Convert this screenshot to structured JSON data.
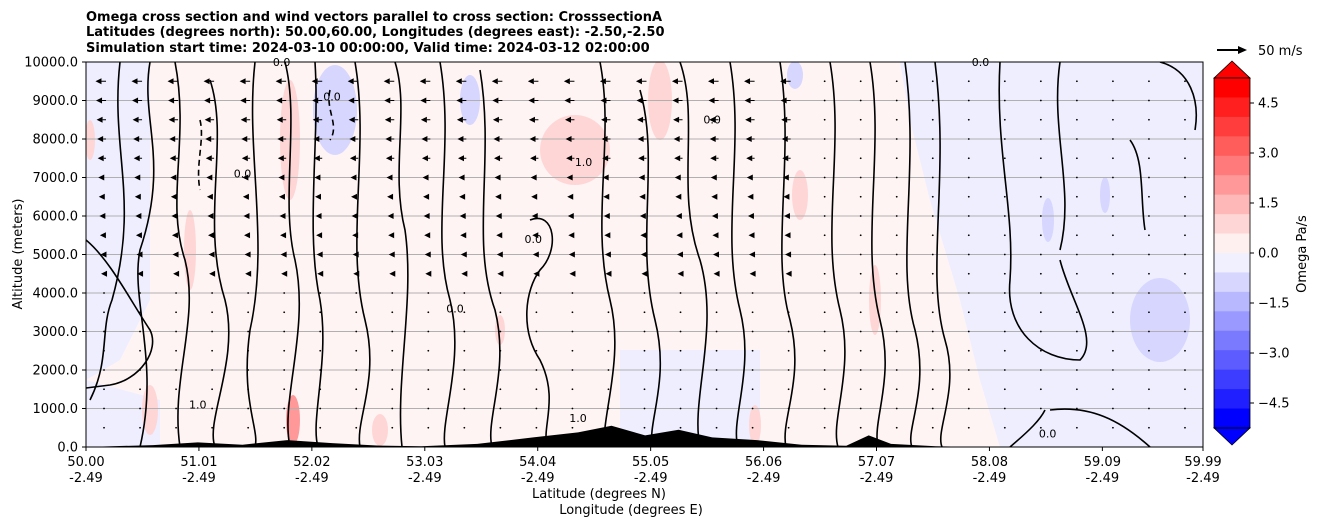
{
  "chart_data": {
    "type": "contour-cross-section",
    "title_lines": [
      "Omega cross section and wind vectors parallel to cross section: CrosssectionA",
      "Latitudes (degrees north): 50.00,60.00, Longitudes (degrees east): -2.50,-2.50",
      "Simulation start time: 2024-03-10 00:00:00, Valid time: 2024-03-12 02:00:00"
    ],
    "ylabel": "Altitude (meters)",
    "xlabel_lat": "Latitude (degrees N)",
    "xlabel_lon": "Longitude (degrees E)",
    "ylim": [
      0,
      10000
    ],
    "yticks": [
      "0.0",
      "1000.0",
      "2000.0",
      "3000.0",
      "4000.0",
      "5000.0",
      "6000.0",
      "7000.0",
      "8000.0",
      "9000.0",
      "10000.0"
    ],
    "xlim": [
      50.0,
      59.99
    ],
    "xticks": [
      {
        "lat": 50.0,
        "label_lat": "50.00",
        "label_lon": "-2.49"
      },
      {
        "lat": 51.01,
        "label_lat": "51.01",
        "label_lon": "-2.49"
      },
      {
        "lat": 52.02,
        "label_lat": "52.02",
        "label_lon": "-2.49"
      },
      {
        "lat": 53.03,
        "label_lat": "53.03",
        "label_lon": "-2.49"
      },
      {
        "lat": 54.04,
        "label_lat": "54.04",
        "label_lon": "-2.49"
      },
      {
        "lat": 55.05,
        "label_lat": "55.05",
        "label_lon": "-2.49"
      },
      {
        "lat": 56.06,
        "label_lat": "56.06",
        "label_lon": "-2.49"
      },
      {
        "lat": 57.07,
        "label_lat": "57.07",
        "label_lon": "-2.49"
      },
      {
        "lat": 58.08,
        "label_lat": "58.08",
        "label_lon": "-2.49"
      },
      {
        "lat": 59.09,
        "label_lat": "59.09",
        "label_lon": "-2.49"
      },
      {
        "lat": 59.99,
        "label_lat": "59.99",
        "label_lon": "-2.49"
      }
    ],
    "colorbar": {
      "label": "Omega Pa/s",
      "range": [
        -5.25,
        5.25
      ],
      "ticks": [
        "4.5",
        "3.0",
        "1.5",
        "0.0",
        "−1.5",
        "−3.0",
        "−4.5"
      ],
      "tick_values": [
        4.5,
        3.0,
        1.5,
        0.0,
        -1.5,
        -3.0,
        -4.5
      ],
      "colors_top_to_bottom": [
        "#ff0000",
        "#ff1f1f",
        "#ff3d3d",
        "#ff5c5c",
        "#ff7a7a",
        "#ff9999",
        "#ffb8b8",
        "#ffd6d6",
        "#fff0f0",
        "#f0f0ff",
        "#d6d6ff",
        "#b8b8ff",
        "#9999ff",
        "#7a7aff",
        "#5c5cff",
        "#3d3dff",
        "#1f1fff",
        "#0000ff"
      ]
    },
    "quiver_key": {
      "label": "50 m/s",
      "speed": 50
    },
    "contour_levels": [
      -1.0,
      0.0,
      1.0
    ],
    "contour_labels": [
      {
        "text": "0.0",
        "lat": 51.75,
        "alt": 9900
      },
      {
        "text": "0.0",
        "lat": 58.0,
        "alt": 9900
      },
      {
        "text": "1.0",
        "lat": 54.45,
        "alt": 7300
      },
      {
        "text": "0.0",
        "lat": 54.0,
        "alt": 5300
      },
      {
        "text": "0.0",
        "lat": 51.4,
        "alt": 7000
      },
      {
        "text": "0.0",
        "lat": 55.6,
        "alt": 8400
      },
      {
        "text": "1.0",
        "lat": 51.0,
        "alt": 1000
      },
      {
        "text": "0.0",
        "lat": 58.6,
        "alt": 250
      },
      {
        "text": "1.0",
        "lat": 54.4,
        "alt": 650
      },
      {
        "text": "0.0",
        "lat": 52.2,
        "alt": 9000
      },
      {
        "text": "0.0",
        "lat": 53.3,
        "alt": 3500
      }
    ],
    "upward_wind_regions_note": "Mostly near zero omega; light blue regions near 3000 m around 59.3N, red patches near terrain 52N and 55N",
    "terrain_heights": [
      {
        "lat": 50.0,
        "alt": 0
      },
      {
        "lat": 50.6,
        "alt": 50
      },
      {
        "lat": 51.0,
        "alt": 120
      },
      {
        "lat": 51.4,
        "alt": 60
      },
      {
        "lat": 51.8,
        "alt": 180
      },
      {
        "lat": 52.2,
        "alt": 100
      },
      {
        "lat": 52.6,
        "alt": 40
      },
      {
        "lat": 53.0,
        "alt": 20
      },
      {
        "lat": 53.5,
        "alt": 80
      },
      {
        "lat": 54.0,
        "alt": 250
      },
      {
        "lat": 54.4,
        "alt": 380
      },
      {
        "lat": 54.7,
        "alt": 550
      },
      {
        "lat": 55.0,
        "alt": 300
      },
      {
        "lat": 55.3,
        "alt": 450
      },
      {
        "lat": 55.6,
        "alt": 250
      },
      {
        "lat": 56.0,
        "alt": 180
      },
      {
        "lat": 56.4,
        "alt": 60
      },
      {
        "lat": 56.8,
        "alt": 30
      },
      {
        "lat": 57.0,
        "alt": 300
      },
      {
        "lat": 57.2,
        "alt": 80
      },
      {
        "lat": 57.6,
        "alt": 20
      },
      {
        "lat": 58.0,
        "alt": 0
      },
      {
        "lat": 59.99,
        "alt": 0
      }
    ]
  }
}
